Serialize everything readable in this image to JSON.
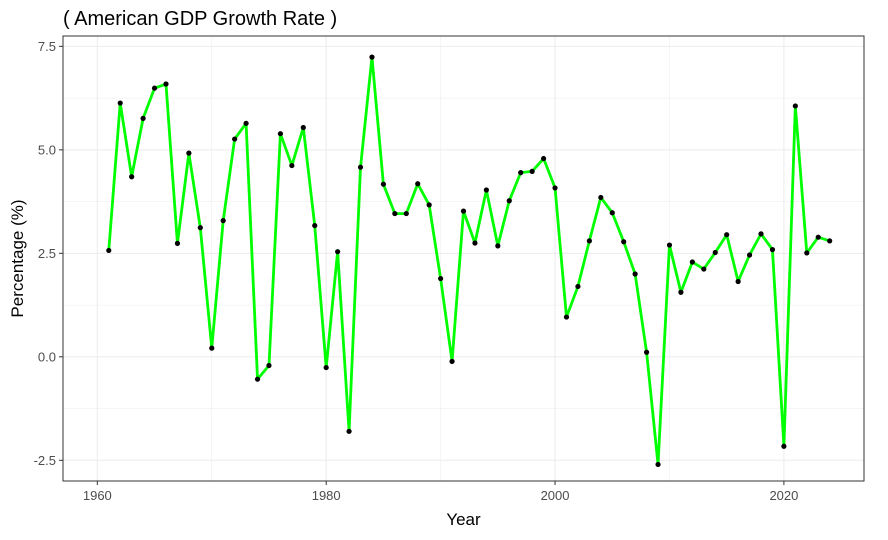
{
  "chart_data": {
    "type": "line",
    "title": "( American GDP Growth Rate )",
    "xlabel": "Year",
    "ylabel": "Percentage (%)",
    "xlim": [
      1957,
      2027
    ],
    "ylim": [
      -3.0,
      7.75
    ],
    "x_ticks": [
      1960,
      1980,
      2000,
      2020
    ],
    "y_ticks": [
      -2.5,
      0.0,
      2.5,
      5.0,
      7.5
    ],
    "y_tick_labels": [
      "-2.5",
      "0.0",
      "2.5",
      "5.0",
      "7.5"
    ],
    "grid": true,
    "legend": "none",
    "line_color": "#00ff00",
    "point_color": "#000000",
    "series": [
      {
        "x": [
          1961,
          1962,
          1963,
          1964,
          1965,
          1966,
          1967,
          1968,
          1969,
          1970,
          1971,
          1972,
          1973,
          1974,
          1975,
          1976,
          1977,
          1978,
          1979,
          1980,
          1981,
          1982,
          1983,
          1984,
          1985,
          1986,
          1987,
          1988,
          1989,
          1990,
          1991,
          1992,
          1993,
          1994,
          1995,
          1996,
          1997,
          1998,
          1999,
          2000,
          2001,
          2002,
          2003,
          2004,
          2005,
          2006,
          2007,
          2008,
          2009,
          2010,
          2011,
          2012,
          2013,
          2014,
          2015,
          2016,
          2017,
          2018,
          2019,
          2020,
          2021,
          2022,
          2023,
          2024
        ],
        "values": [
          2.57,
          6.13,
          4.35,
          5.76,
          6.49,
          6.59,
          2.74,
          4.92,
          3.12,
          0.21,
          3.29,
          5.26,
          5.64,
          -0.54,
          -0.21,
          5.39,
          4.62,
          5.54,
          3.17,
          -0.26,
          2.54,
          -1.8,
          4.58,
          7.24,
          4.17,
          3.46,
          3.46,
          4.18,
          3.67,
          1.89,
          -0.11,
          3.52,
          2.75,
          4.03,
          2.68,
          3.77,
          4.45,
          4.48,
          4.79,
          4.08,
          0.96,
          1.7,
          2.8,
          3.85,
          3.48,
          2.78,
          2.0,
          0.11,
          -2.6,
          2.7,
          1.56,
          2.29,
          2.12,
          2.52,
          2.95,
          1.82,
          2.46,
          2.97,
          2.59,
          -2.16,
          6.06,
          2.51,
          2.89,
          2.8
        ]
      }
    ]
  }
}
